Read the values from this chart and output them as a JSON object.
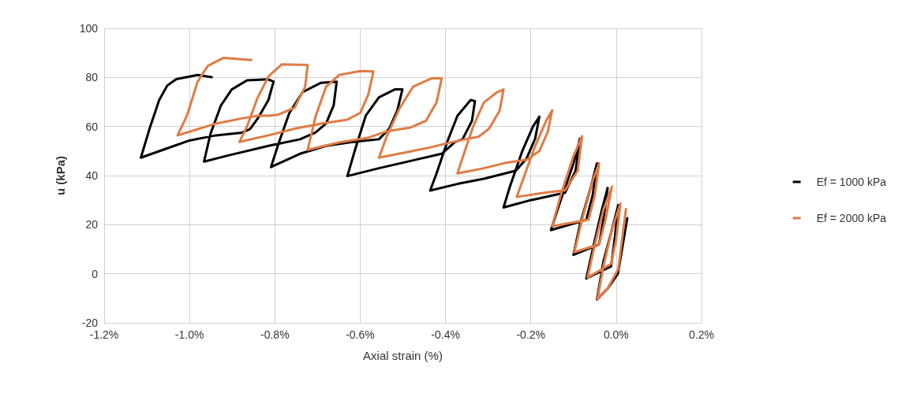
{
  "chart_data": {
    "type": "line",
    "xlabel": "Axial strain (%)",
    "ylabel": "u (kPa)",
    "xlim": [
      -1.2,
      0.2
    ],
    "xticks": [
      {
        "value": -1.2,
        "label": "-1.2%"
      },
      {
        "value": -1.0,
        "label": "-1.0%"
      },
      {
        "value": -0.8,
        "label": "-0.8%"
      },
      {
        "value": -0.6,
        "label": "-0.6%"
      },
      {
        "value": -0.4,
        "label": "-0.4%"
      },
      {
        "value": -0.2,
        "label": "-0.2%"
      },
      {
        "value": 0,
        "label": "0.0%"
      },
      {
        "value": 0.2,
        "label": "0.2%"
      }
    ],
    "ylim": [
      -20,
      100
    ],
    "yticks": [
      -20,
      0,
      20,
      40,
      60,
      80,
      100
    ],
    "grid": true,
    "legend": "right",
    "series": [
      {
        "name": "Ef = 1000 kPa",
        "color": "#000000",
        "x": [
          0.026,
          0.004,
          -0.02,
          -0.045,
          -0.03,
          -0.01,
          0.005,
          -0.003,
          -0.012,
          -0.07,
          -0.055,
          -0.035,
          -0.02,
          -0.03,
          -0.04,
          -0.1,
          -0.085,
          -0.06,
          -0.045,
          -0.055,
          -0.07,
          -0.153,
          -0.13,
          -0.1,
          -0.085,
          -0.095,
          -0.12,
          -0.2,
          -0.264,
          -0.25,
          -0.22,
          -0.195,
          -0.18,
          -0.19,
          -0.21,
          -0.235,
          -0.31,
          -0.372,
          -0.436,
          -0.421,
          -0.396,
          -0.372,
          -0.341,
          -0.331,
          -0.338,
          -0.36,
          -0.378,
          -0.409,
          -0.464,
          -0.556,
          -0.63,
          -0.612,
          -0.587,
          -0.556,
          -0.519,
          -0.501,
          -0.513,
          -0.532,
          -0.556,
          -0.618,
          -0.68,
          -0.741,
          -0.809,
          -0.79,
          -0.766,
          -0.735,
          -0.692,
          -0.655,
          -0.662,
          -0.68,
          -0.705,
          -0.741,
          -0.815,
          -0.907,
          -0.966,
          -0.951,
          -0.926,
          -0.901,
          -0.865,
          -0.815,
          -0.803,
          -0.815,
          -0.84,
          -0.858,
          -0.877,
          -0.938,
          -1.0,
          -1.062,
          -1.114,
          -1.092,
          -1.071,
          -1.052,
          -1.031,
          -0.981,
          -0.948
        ],
        "values": [
          22.7,
          0,
          -6,
          -10.5,
          5,
          18,
          28,
          15,
          3,
          -1.9,
          10,
          25,
          35,
          22,
          12,
          7.7,
          20,
          35,
          45,
          32,
          22,
          17.8,
          30,
          45,
          55,
          42,
          33,
          30,
          27,
          35,
          50,
          60,
          64,
          55,
          47,
          42,
          38.7,
          36.6,
          33.9,
          40.9,
          53.7,
          64.4,
          70.8,
          70.3,
          62.3,
          54.8,
          53.7,
          48.9,
          46.7,
          43,
          39.8,
          50.5,
          64.4,
          71.9,
          75.1,
          75.1,
          66.5,
          59.1,
          54.8,
          53.7,
          52.1,
          48.9,
          43.5,
          53.7,
          65.5,
          74,
          77.8,
          78.3,
          68.7,
          61.2,
          57.5,
          54.8,
          52.1,
          48.3,
          45.7,
          56.9,
          68.7,
          75.1,
          78.8,
          79.2,
          78.3,
          70.8,
          63.3,
          59,
          57.5,
          56.4,
          54.3,
          50.5,
          47.3,
          60,
          70.8,
          76.7,
          79.3,
          81,
          80.1
        ]
      },
      {
        "name": "Ef = 2000 kPa",
        "color": "#e07b45",
        "x": [
          0.023,
          0.005,
          -0.02,
          -0.044,
          -0.03,
          -0.01,
          0.01,
          0.0,
          -0.012,
          -0.067,
          -0.05,
          -0.03,
          -0.01,
          -0.025,
          -0.04,
          -0.098,
          -0.08,
          -0.055,
          -0.04,
          -0.05,
          -0.065,
          -0.15,
          -0.13,
          -0.1,
          -0.08,
          -0.09,
          -0.12,
          -0.168,
          -0.233,
          -0.215,
          -0.19,
          -0.165,
          -0.15,
          -0.16,
          -0.18,
          -0.209,
          -0.261,
          -0.31,
          -0.372,
          -0.36,
          -0.335,
          -0.31,
          -0.279,
          -0.264,
          -0.273,
          -0.298,
          -0.322,
          -0.353,
          -0.396,
          -0.433,
          -0.495,
          -0.556,
          -0.538,
          -0.507,
          -0.476,
          -0.433,
          -0.409,
          -0.421,
          -0.446,
          -0.482,
          -0.538,
          -0.58,
          -0.65,
          -0.723,
          -0.704,
          -0.68,
          -0.649,
          -0.6,
          -0.569,
          -0.581,
          -0.6,
          -0.63,
          -0.692,
          -0.754,
          -0.815,
          -0.883,
          -0.865,
          -0.84,
          -0.815,
          -0.784,
          -0.723,
          -0.729,
          -0.754,
          -0.791,
          -0.815,
          -0.84,
          -0.877,
          -0.938,
          -1.028,
          -1.006,
          -0.981,
          -0.957,
          -0.92,
          -0.855
        ],
        "values": [
          26.4,
          2,
          -6,
          -10.5,
          3,
          18,
          28.6,
          14,
          4,
          -1.5,
          12,
          26,
          35.5,
          22,
          12,
          8.8,
          22,
          38,
          45,
          32,
          22,
          19.4,
          32,
          48,
          56,
          42,
          34,
          33,
          31.3,
          40,
          52,
          62,
          66.6,
          58,
          50,
          46.5,
          45.1,
          43,
          40.9,
          47.3,
          60.1,
          69.8,
          74,
          75.1,
          66.5,
          59.1,
          55.9,
          54.8,
          53.2,
          51.6,
          49.4,
          47.3,
          55.9,
          67.6,
          76.2,
          79.6,
          79.6,
          69.8,
          62.3,
          59.6,
          58,
          55.5,
          53.5,
          50.5,
          64.4,
          76.2,
          81,
          82.6,
          82.4,
          73,
          65.5,
          62.8,
          61.2,
          59.1,
          56.4,
          53.7,
          60.1,
          71.9,
          80.4,
          85.3,
          85.1,
          76.2,
          67.6,
          64.9,
          64.4,
          64.4,
          63.3,
          61.2,
          56.4,
          64.4,
          78.3,
          84.7,
          88,
          87.1
        ]
      }
    ]
  }
}
